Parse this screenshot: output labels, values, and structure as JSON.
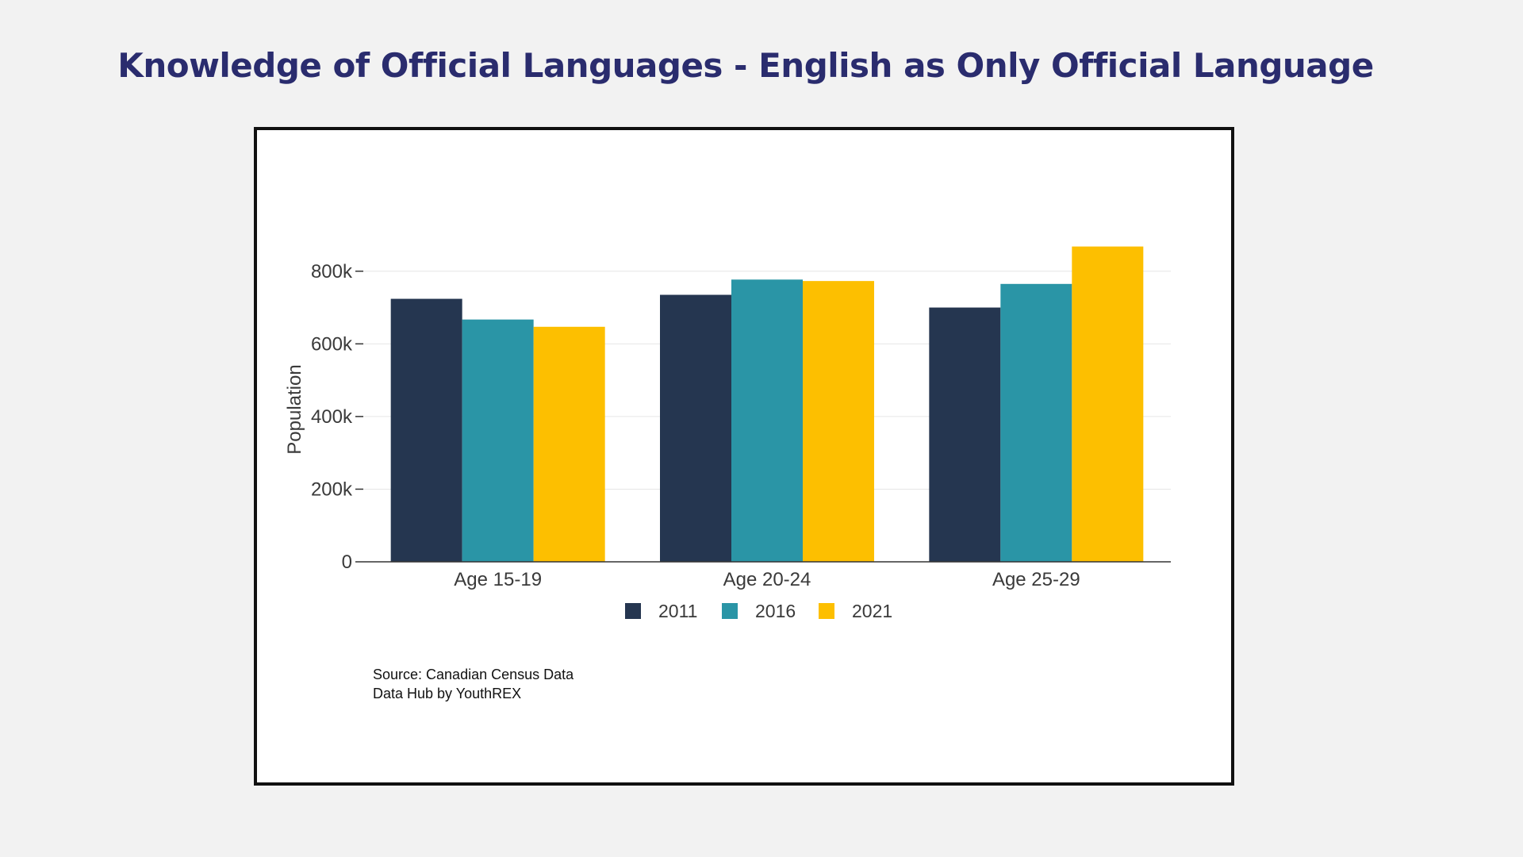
{
  "page": {
    "title": "Knowledge of Official Languages - English as Only Official Language"
  },
  "chart_data": {
    "type": "bar",
    "title": "Knowledge of Official Languages - English as Only Official Language",
    "xlabel": "",
    "ylabel": "Population",
    "categories": [
      "Age 15-19",
      "Age 20-24",
      "Age 25-29"
    ],
    "series": [
      {
        "name": "2011",
        "color": "#253650",
        "values": [
          724000,
          735000,
          700000
        ]
      },
      {
        "name": "2016",
        "color": "#2a95a6",
        "values": [
          667000,
          777000,
          765000
        ]
      },
      {
        "name": "2021",
        "color": "#fdbf00",
        "values": [
          647000,
          773000,
          868000
        ]
      }
    ],
    "yticks": [
      0,
      200000,
      400000,
      600000,
      800000
    ],
    "ytick_labels": [
      "0",
      "200k",
      "400k",
      "600k",
      "800k"
    ],
    "ylim": [
      0,
      900000
    ],
    "grid": true,
    "legend_position": "bottom-center"
  },
  "source": {
    "line1": "Source: Canadian Census Data",
    "line2": "Data Hub by YouthREX"
  }
}
